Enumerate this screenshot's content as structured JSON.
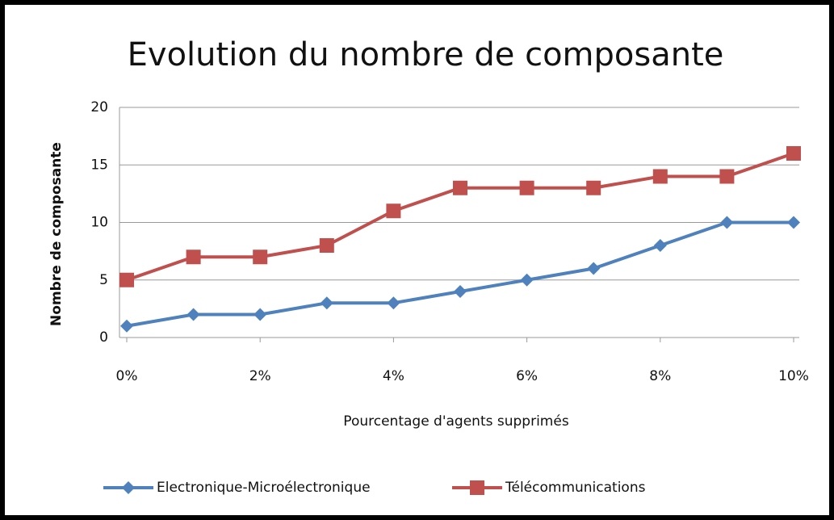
{
  "chart_data": {
    "type": "line",
    "title": "Evolution du nombre de composante",
    "x_label": "Pourcentage d'agents supprimés",
    "y_label": "Nombre de composante",
    "x": [
      0,
      1,
      2,
      3,
      4,
      5,
      6,
      7,
      8,
      9,
      10
    ],
    "xlim": [
      0,
      10
    ],
    "xticks": [
      {
        "value": 0,
        "label": "0%"
      },
      {
        "value": 2,
        "label": "2%"
      },
      {
        "value": 4,
        "label": "4%"
      },
      {
        "value": 6,
        "label": "6%"
      },
      {
        "value": 8,
        "label": "8%"
      },
      {
        "value": 10,
        "label": "10%"
      }
    ],
    "ylim": [
      0,
      20
    ],
    "yticks": [
      0,
      5,
      10,
      15,
      20
    ],
    "grid": true,
    "legend": "bottom",
    "series": [
      {
        "name": "Electronique-Microélectronique",
        "color": "#4f81bd",
        "marker": "diamond",
        "values": [
          1,
          2,
          2,
          3,
          3,
          4,
          5,
          6,
          8,
          10,
          10
        ]
      },
      {
        "name": "Télécommunications",
        "color": "#c0504d",
        "marker": "square",
        "values": [
          5,
          7,
          7,
          8,
          11,
          13,
          13,
          13,
          14,
          14,
          16
        ]
      }
    ]
  }
}
